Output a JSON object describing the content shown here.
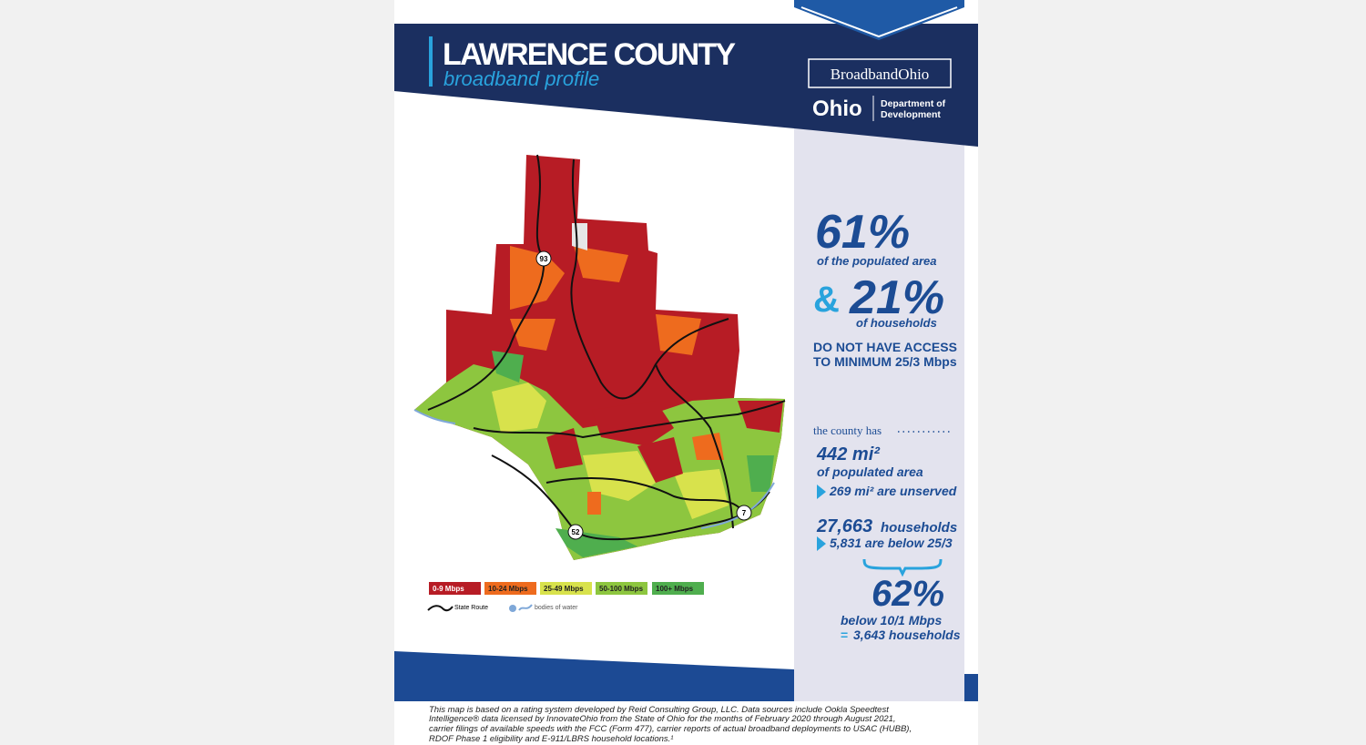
{
  "header": {
    "title": "LAWRENCE COUNTY",
    "subtitle": "broadband profile"
  },
  "logos": {
    "broadband_ohio": "BroadbandOhio",
    "ohio": "Ohio",
    "department": [
      "Department of",
      "Development"
    ]
  },
  "map": {
    "route_labels": [
      "93",
      "52",
      "7"
    ],
    "legend": [
      {
        "label": "0-9 Mbps",
        "color": "#b71c25"
      },
      {
        "label": "10-24 Mbps",
        "color": "#ee6b1e"
      },
      {
        "label": "25-49 Mbps",
        "color": "#d8e24c"
      },
      {
        "label": "50-100 Mbps",
        "color": "#8dc63f"
      },
      {
        "label": "100+ Mbps",
        "color": "#4fae4e"
      }
    ],
    "state_route": "State Route",
    "water": "bodies of water"
  },
  "stats": {
    "area_pct": "61%",
    "area_text": "of the populated area",
    "amp": "&",
    "households_pct": "21%",
    "households_text": "of households",
    "no_access": [
      "DO NOT HAVE ACCESS",
      "TO MINIMUM 25/3 Mbps"
    ],
    "county_has": "the county has",
    "area": "442 mi²",
    "area_label": "of populated area",
    "unserved": "269 mi² are unserved",
    "households": "27,663",
    "households_label": "households",
    "below_25": "5,831 are below 25/3",
    "below_10_pct": "62%",
    "below_10_text": "below 10/1 Mbps",
    "equals": "=",
    "below_10_households": "3,643 households"
  },
  "footer": [
    "This map is based on a rating system developed by Reid Consulting Group, LLC. Data sources include Ookla Speedtest",
    "Intelligence® data licensed by InnovateOhio from the State of Ohio for the months of February 2020 through August 2021,",
    "carrier filings of available speeds with the FCC (Form 477), carrier reports of actual broadband deployments to USAC (HUBB),",
    "RDOF Phase 1 eligibility and E-911/LBRS household locations.¹"
  ]
}
